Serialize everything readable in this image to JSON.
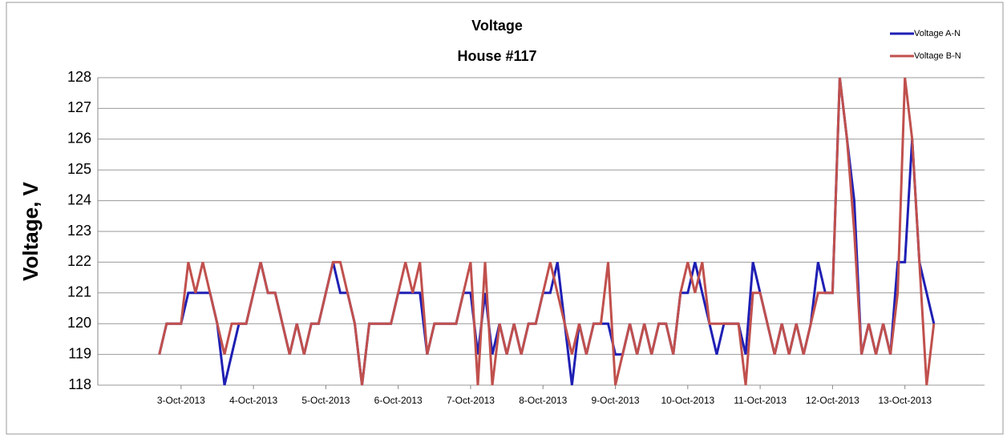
{
  "chart_data": {
    "type": "line",
    "title": "Voltage",
    "subtitle": "House #117",
    "y_label": "Voltage, V",
    "x": [
      2.7,
      2.8,
      2.9,
      3.0,
      3.1,
      3.2,
      3.3,
      3.4,
      3.5,
      3.6,
      3.7,
      3.8,
      3.9,
      4.0,
      4.1,
      4.2,
      4.3,
      4.4,
      4.5,
      4.6,
      4.7,
      4.8,
      4.9,
      5.0,
      5.1,
      5.2,
      5.3,
      5.4,
      5.5,
      5.6,
      5.7,
      5.8,
      5.9,
      6.0,
      6.1,
      6.2,
      6.3,
      6.4,
      6.5,
      6.6,
      6.7,
      6.8,
      6.9,
      7.0,
      7.1,
      7.2,
      7.3,
      7.4,
      7.5,
      7.6,
      7.7,
      7.8,
      7.9,
      8.0,
      8.1,
      8.2,
      8.3,
      8.4,
      8.5,
      8.6,
      8.7,
      8.8,
      8.9,
      9.0,
      9.1,
      9.2,
      9.3,
      9.4,
      9.5,
      9.6,
      9.7,
      9.8,
      9.9,
      10.0,
      10.1,
      10.2,
      10.3,
      10.4,
      10.5,
      10.6,
      10.7,
      10.8,
      10.9,
      11.0,
      11.1,
      11.2,
      11.3,
      11.4,
      11.5,
      11.6,
      11.7,
      11.8,
      11.9,
      12.0,
      12.1,
      12.2,
      12.3,
      12.4,
      12.5,
      12.6,
      12.7,
      12.8,
      12.9,
      13.0,
      13.1,
      13.2,
      13.3,
      13.4
    ],
    "series": [
      {
        "name": "Voltage A-N",
        "color": "#1f1fb4",
        "values": [
          119,
          120,
          120,
          120,
          121,
          121,
          121,
          121,
          120,
          118,
          119,
          120,
          120,
          121,
          122,
          121,
          121,
          120,
          119,
          120,
          119,
          120,
          120,
          121,
          122,
          121,
          121,
          120,
          118,
          120,
          120,
          120,
          120,
          121,
          121,
          121,
          121,
          119,
          120,
          120,
          120,
          120,
          121,
          121,
          119,
          121,
          119,
          120,
          119,
          120,
          119,
          120,
          120,
          121,
          121,
          122,
          120,
          118,
          120,
          119,
          120,
          120,
          120,
          119,
          119,
          120,
          119,
          120,
          119,
          120,
          120,
          119,
          121,
          121,
          122,
          121,
          120,
          119,
          120,
          120,
          120,
          119,
          122,
          121,
          120,
          119,
          120,
          119,
          120,
          119,
          120,
          122,
          121,
          121,
          128,
          126,
          124,
          119,
          120,
          119,
          120,
          119,
          122,
          122,
          126,
          122,
          121,
          120
        ]
      },
      {
        "name": "Voltage B-N",
        "color": "#c0504d",
        "values": [
          119,
          120,
          120,
          120,
          122,
          121,
          122,
          121,
          120,
          119,
          120,
          120,
          120,
          121,
          122,
          121,
          121,
          120,
          119,
          120,
          119,
          120,
          120,
          121,
          122,
          122,
          121,
          120,
          118,
          120,
          120,
          120,
          120,
          121,
          122,
          121,
          122,
          119,
          120,
          120,
          120,
          120,
          121,
          122,
          118,
          122,
          118,
          120,
          119,
          120,
          119,
          120,
          120,
          121,
          122,
          121,
          120,
          119,
          120,
          119,
          120,
          120,
          122,
          118,
          119,
          120,
          119,
          120,
          119,
          120,
          120,
          119,
          121,
          122,
          121,
          122,
          120,
          120,
          120,
          120,
          120,
          118,
          121,
          121,
          120,
          119,
          120,
          119,
          120,
          119,
          120,
          121,
          121,
          121,
          128,
          126,
          123,
          119,
          120,
          119,
          120,
          119,
          121,
          128,
          126,
          122,
          118,
          120
        ]
      }
    ],
    "xlim": [
      1.85,
      14.1
    ],
    "xticks": [
      {
        "value": 3,
        "label": "3-Oct-2013"
      },
      {
        "value": 4,
        "label": "4-Oct-2013"
      },
      {
        "value": 5,
        "label": "5-Oct-2013"
      },
      {
        "value": 6,
        "label": "6-Oct-2013"
      },
      {
        "value": 7,
        "label": "7-Oct-2013"
      },
      {
        "value": 8,
        "label": "8-Oct-2013"
      },
      {
        "value": 9,
        "label": "9-Oct-2013"
      },
      {
        "value": 10,
        "label": "10-Oct-2013"
      },
      {
        "value": 11,
        "label": "11-Oct-2013"
      },
      {
        "value": 12,
        "label": "12-Oct-2013"
      },
      {
        "value": 13,
        "label": "13-Oct-2013"
      }
    ],
    "ylim": [
      118,
      128
    ],
    "yticks": [
      118,
      119,
      120,
      121,
      122,
      123,
      124,
      125,
      126,
      127,
      128
    ],
    "grid": true,
    "legend": "top-right"
  }
}
